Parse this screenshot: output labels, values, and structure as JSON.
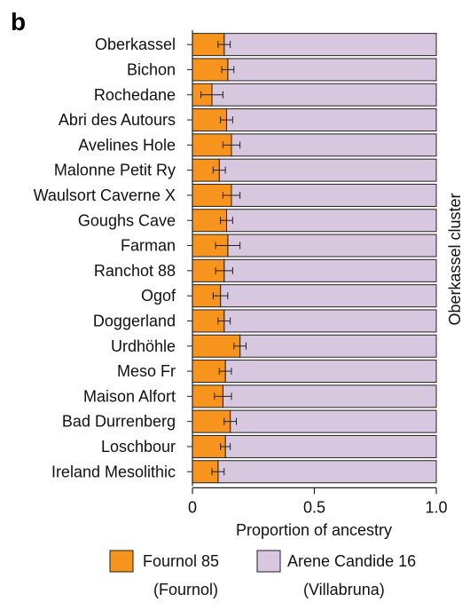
{
  "panel_label": "b",
  "colors": {
    "fournol": "#F7941D",
    "arene": "#D7C8E0",
    "stroke": "#231F20"
  },
  "chart_data": {
    "type": "bar",
    "stacked": true,
    "orientation": "horizontal",
    "categories": [
      "Oberkassel",
      "Bichon",
      "Rochedane",
      "Abri des Autours",
      "Avelines Hole",
      "Malonne Petit Ry",
      "Waulsort Caverne X",
      "Goughs Cave",
      "Farman",
      "Ranchot 88",
      "Ogof",
      "Doggerland",
      "Urdhöhle",
      "Meso Fr",
      "Maison Alfort",
      "Bad Durrenberg",
      "Loschbour",
      "Ireland Mesolithic"
    ],
    "series": [
      {
        "name": "Fournol 85",
        "sub": "(Fournol)",
        "values": [
          0.13,
          0.145,
          0.08,
          0.14,
          0.16,
          0.11,
          0.16,
          0.14,
          0.145,
          0.13,
          0.115,
          0.13,
          0.195,
          0.135,
          0.125,
          0.155,
          0.135,
          0.105
        ],
        "error": [
          0.025,
          0.025,
          0.045,
          0.025,
          0.035,
          0.025,
          0.035,
          0.025,
          0.05,
          0.035,
          0.03,
          0.025,
          0.025,
          0.025,
          0.035,
          0.025,
          0.02,
          0.025
        ]
      },
      {
        "name": "Arene Candide 16",
        "sub": "(Villabruna)",
        "values": [
          0.87,
          0.855,
          0.92,
          0.86,
          0.84,
          0.89,
          0.84,
          0.86,
          0.855,
          0.87,
          0.885,
          0.87,
          0.805,
          0.865,
          0.875,
          0.845,
          0.865,
          0.895
        ]
      }
    ],
    "xlabel": "Proportion of ancestry",
    "ylabel": "Oberkassel cluster",
    "xlim": [
      0,
      1.0
    ],
    "xticks": [
      0,
      0.5,
      1.0
    ],
    "xtick_labels": [
      "0",
      "0.5",
      "1.0"
    ],
    "legend_position": "bottom",
    "grid": false
  }
}
